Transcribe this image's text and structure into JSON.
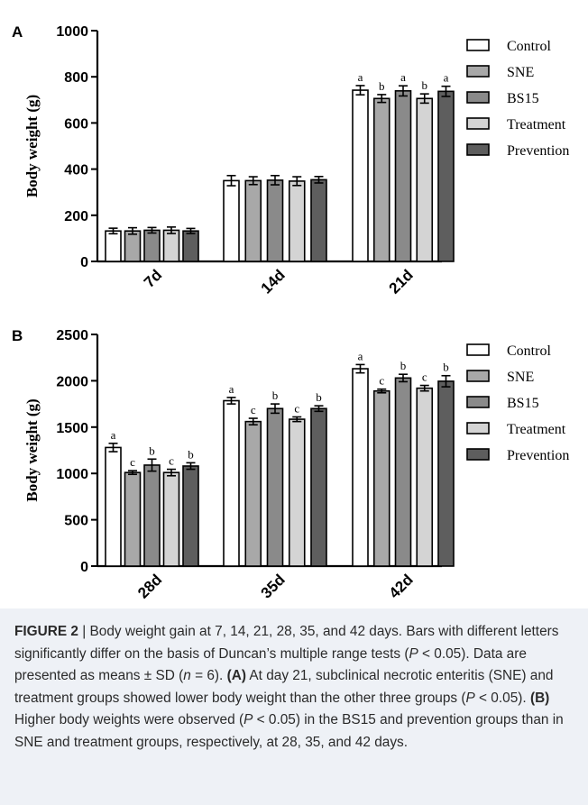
{
  "chart_data": [
    {
      "panel": "A",
      "type": "bar",
      "ylabel": "Body weight (g)",
      "ylim": [
        0,
        1000
      ],
      "yticks": [
        "0",
        "200",
        "400",
        "600",
        "800",
        "1000"
      ],
      "categories": [
        "7d",
        "14d",
        "21d"
      ],
      "legend_position": "right",
      "series": [
        {
          "name": "Control",
          "color": "#ffffff",
          "values": [
            132,
            350,
            742
          ],
          "errors": [
            12,
            22,
            20
          ],
          "letters": [
            "",
            "",
            "a"
          ]
        },
        {
          "name": "SNE",
          "color": "#a8a8a8",
          "values": [
            132,
            350,
            706
          ],
          "errors": [
            14,
            17,
            17
          ],
          "letters": [
            "",
            "",
            "b"
          ]
        },
        {
          "name": "BS15",
          "color": "#8a8a8a",
          "values": [
            135,
            352,
            739
          ],
          "errors": [
            12,
            20,
            22
          ],
          "letters": [
            "",
            "",
            "a"
          ]
        },
        {
          "name": "Treatment",
          "color": "#d4d4d4",
          "values": [
            135,
            348,
            706
          ],
          "errors": [
            14,
            19,
            20
          ],
          "letters": [
            "",
            "",
            "b"
          ]
        },
        {
          "name": "Prevention",
          "color": "#5e5e5e",
          "values": [
            132,
            354,
            737
          ],
          "errors": [
            11,
            14,
            22
          ],
          "letters": [
            "",
            "",
            "a"
          ]
        }
      ]
    },
    {
      "panel": "B",
      "type": "bar",
      "ylabel": "Body weight (g)",
      "ylim": [
        0,
        2500
      ],
      "yticks": [
        "0",
        "500",
        "1000",
        "1500",
        "2000",
        "2500"
      ],
      "categories": [
        "28d",
        "35d",
        "42d"
      ],
      "legend_position": "right",
      "series": [
        {
          "name": "Control",
          "color": "#ffffff",
          "values": [
            1280,
            1785,
            2130
          ],
          "errors": [
            45,
            35,
            45
          ],
          "letters": [
            "a",
            "a",
            "a"
          ]
        },
        {
          "name": "SNE",
          "color": "#a8a8a8",
          "values": [
            1010,
            1560,
            1890
          ],
          "errors": [
            20,
            35,
            20
          ],
          "letters": [
            "c",
            "c",
            "c"
          ]
        },
        {
          "name": "BS15",
          "color": "#8a8a8a",
          "values": [
            1090,
            1700,
            2030
          ],
          "errors": [
            65,
            50,
            40
          ],
          "letters": [
            "b",
            "b",
            "b"
          ]
        },
        {
          "name": "Treatment",
          "color": "#d4d4d4",
          "values": [
            1010,
            1585,
            1920
          ],
          "errors": [
            35,
            25,
            30
          ],
          "letters": [
            "c",
            "c",
            "c"
          ]
        },
        {
          "name": "Prevention",
          "color": "#5e5e5e",
          "values": [
            1080,
            1700,
            1995
          ],
          "errors": [
            35,
            30,
            60
          ],
          "letters": [
            "b",
            "b",
            "b"
          ]
        }
      ]
    }
  ],
  "caption": {
    "label": "FIGURE 2",
    "separator": " | ",
    "t1": "Body weight gain at 7, 14, 21, 28, 35, and 42 days. Bars with different letters significantly differ on the basis of Duncan’s multiple range tests (",
    "p1": "P",
    "t2": " < 0.05). Data are presented as means ± SD (",
    "n": "n",
    "t3": " = 6). ",
    "a_label": "(A)",
    "t4": " At day 21, subclinical necrotic enteritis (SNE) and treatment groups showed lower body weight than the other three groups (",
    "p2": "P",
    "t5": " < 0.05). ",
    "b_label": "(B)",
    "t6": " Higher body weights were observed (",
    "p3": "P",
    "t7": " < 0.05) in the BS15 and prevention groups than in SNE and treatment groups, respectively, at 28, 35, and 42 days."
  }
}
